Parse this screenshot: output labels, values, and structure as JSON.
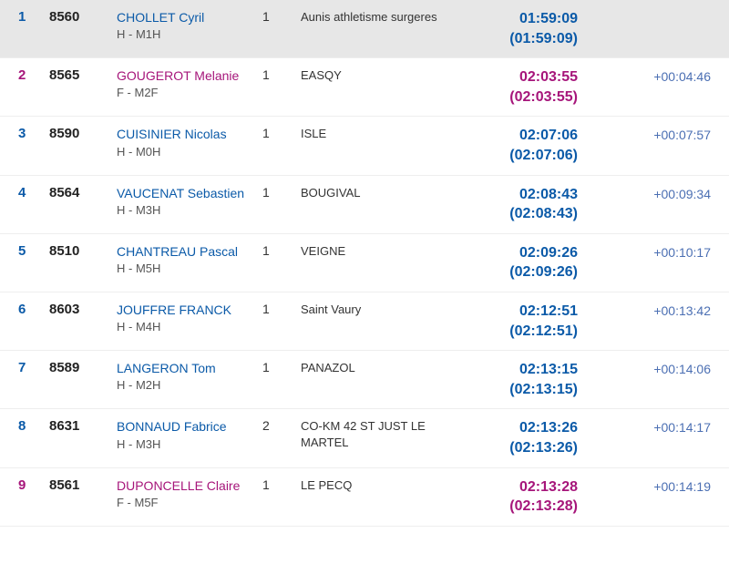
{
  "colors": {
    "male": "#0b5aa8",
    "female": "#a6157a",
    "gap": "#4b6fb3",
    "row_highlight_bg": "#e7e7e7",
    "text": "#333333",
    "muted": "#555555"
  },
  "results": [
    {
      "rank": "1",
      "bib": "8560",
      "name": "CHOLLET Cyril",
      "category": "H - M1H",
      "gender": "M",
      "laps": "1",
      "club": "Aunis athletisme surgeres",
      "time": "01:59:09",
      "time_net": "(01:59:09)",
      "gap": "",
      "highlight": true
    },
    {
      "rank": "2",
      "bib": "8565",
      "name": "GOUGEROT Melanie",
      "category": "F - M2F",
      "gender": "F",
      "laps": "1",
      "club": "EASQY",
      "time": "02:03:55",
      "time_net": "(02:03:55)",
      "gap": "+00:04:46",
      "highlight": false
    },
    {
      "rank": "3",
      "bib": "8590",
      "name": "CUISINIER Nicolas",
      "category": "H - M0H",
      "gender": "M",
      "laps": "1",
      "club": "ISLE",
      "time": "02:07:06",
      "time_net": "(02:07:06)",
      "gap": "+00:07:57",
      "highlight": false
    },
    {
      "rank": "4",
      "bib": "8564",
      "name": "VAUCENAT Sebastien",
      "category": "H - M3H",
      "gender": "M",
      "laps": "1",
      "club": "BOUGIVAL",
      "time": "02:08:43",
      "time_net": "(02:08:43)",
      "gap": "+00:09:34",
      "highlight": false
    },
    {
      "rank": "5",
      "bib": "8510",
      "name": "CHANTREAU Pascal",
      "category": "H - M5H",
      "gender": "M",
      "laps": "1",
      "club": "VEIGNE",
      "time": "02:09:26",
      "time_net": "(02:09:26)",
      "gap": "+00:10:17",
      "highlight": false
    },
    {
      "rank": "6",
      "bib": "8603",
      "name": "JOUFFRE FRANCK",
      "category": "H - M4H",
      "gender": "M",
      "laps": "1",
      "club": "Saint Vaury",
      "time": "02:12:51",
      "time_net": "(02:12:51)",
      "gap": "+00:13:42",
      "highlight": false
    },
    {
      "rank": "7",
      "bib": "8589",
      "name": "LANGERON Tom",
      "category": "H - M2H",
      "gender": "M",
      "laps": "1",
      "club": "PANAZOL",
      "time": "02:13:15",
      "time_net": "(02:13:15)",
      "gap": "+00:14:06",
      "highlight": false
    },
    {
      "rank": "8",
      "bib": "8631",
      "name": "BONNAUD Fabrice",
      "category": "H - M3H",
      "gender": "M",
      "laps": "2",
      "club": "CO-KM 42 ST JUST LE MARTEL",
      "time": "02:13:26",
      "time_net": "(02:13:26)",
      "gap": "+00:14:17",
      "highlight": false
    },
    {
      "rank": "9",
      "bib": "8561",
      "name": "DUPONCELLE Claire",
      "category": "F - M5F",
      "gender": "F",
      "laps": "1",
      "club": "LE PECQ",
      "time": "02:13:28",
      "time_net": "(02:13:28)",
      "gap": "+00:14:19",
      "highlight": false
    }
  ]
}
